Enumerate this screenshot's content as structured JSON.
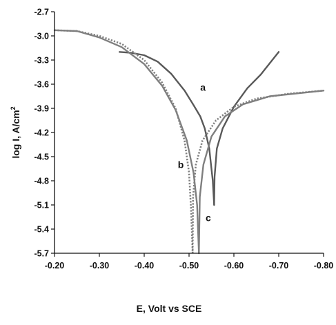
{
  "chart_data": {
    "type": "line",
    "title": "",
    "xlabel": "E, Volt vs SCE",
    "ylabel_main": "log I, A/cm",
    "ylabel_sup": "2",
    "xlim": [
      -0.2,
      -0.8
    ],
    "ylim": [
      -5.7,
      -2.7
    ],
    "x_ticks": [
      -0.2,
      -0.3,
      -0.4,
      -0.5,
      -0.6,
      -0.7,
      -0.8
    ],
    "x_tick_labels": [
      "-0.20",
      "-0.30",
      "-0.40",
      "-0.50",
      "-0.60",
      "-0.70",
      "-0.80"
    ],
    "y_ticks": [
      -2.7,
      -3.0,
      -3.3,
      -3.6,
      -3.9,
      -4.2,
      -4.5,
      -4.8,
      -5.1,
      -5.4,
      -5.7
    ],
    "y_tick_labels": [
      "-2.7",
      "-3.0",
      "-3.3",
      "-3.6",
      "-3.9",
      "-4.2",
      "-4.5",
      "-4.8",
      "-5.1",
      "-5.4",
      "-5.7"
    ],
    "grid": false,
    "series": [
      {
        "name": "a",
        "color": "#595959",
        "dash": "solid",
        "label_at": [
          -0.525,
          -3.68
        ],
        "segments": [
          [
            [
              -0.345,
              -3.2
            ],
            [
              -0.37,
              -3.21
            ],
            [
              -0.4,
              -3.24
            ],
            [
              -0.43,
              -3.32
            ],
            [
              -0.46,
              -3.47
            ],
            [
              -0.49,
              -3.68
            ],
            [
              -0.51,
              -3.86
            ],
            [
              -0.525,
              -4.0
            ],
            [
              -0.535,
              -4.15
            ],
            [
              -0.545,
              -4.4
            ],
            [
              -0.553,
              -4.8
            ],
            [
              -0.556,
              -5.1
            ]
          ],
          [
            [
              -0.556,
              -5.1
            ],
            [
              -0.557,
              -4.75
            ],
            [
              -0.562,
              -4.4
            ],
            [
              -0.575,
              -4.15
            ],
            [
              -0.6,
              -3.88
            ],
            [
              -0.63,
              -3.65
            ],
            [
              -0.66,
              -3.48
            ],
            [
              -0.7,
              -3.2
            ]
          ]
        ]
      },
      {
        "name": "b",
        "color": "#808080",
        "dash": "dotted",
        "label_at": [
          -0.475,
          -4.64
        ],
        "segments": [
          [
            [
              -0.2,
              -2.93
            ],
            [
              -0.25,
              -2.94
            ],
            [
              -0.3,
              -3.0
            ],
            [
              -0.35,
              -3.1
            ],
            [
              -0.4,
              -3.3
            ],
            [
              -0.44,
              -3.58
            ],
            [
              -0.47,
              -3.9
            ],
            [
              -0.49,
              -4.3
            ],
            [
              -0.5,
              -4.7
            ],
            [
              -0.505,
              -5.2
            ],
            [
              -0.508,
              -5.7
            ]
          ],
          [
            [
              -0.508,
              -5.7
            ],
            [
              -0.509,
              -5.0
            ],
            [
              -0.515,
              -4.6
            ],
            [
              -0.53,
              -4.3
            ],
            [
              -0.56,
              -4.05
            ],
            [
              -0.6,
              -3.88
            ],
            [
              -0.65,
              -3.78
            ],
            [
              -0.72,
              -3.72
            ],
            [
              -0.8,
              -3.68
            ]
          ]
        ]
      },
      {
        "name": "c",
        "color": "#7f7f7f",
        "dash": "solid",
        "label_at": [
          -0.537,
          -5.3
        ],
        "segments": [
          [
            [
              -0.2,
              -2.93
            ],
            [
              -0.25,
              -2.94
            ],
            [
              -0.3,
              -3.02
            ],
            [
              -0.35,
              -3.14
            ],
            [
              -0.4,
              -3.35
            ],
            [
              -0.44,
              -3.62
            ],
            [
              -0.47,
              -3.92
            ],
            [
              -0.495,
              -4.3
            ],
            [
              -0.51,
              -4.7
            ],
            [
              -0.518,
              -5.1
            ],
            [
              -0.522,
              -5.7
            ]
          ],
          [
            [
              -0.522,
              -5.7
            ],
            [
              -0.524,
              -5.0
            ],
            [
              -0.532,
              -4.6
            ],
            [
              -0.55,
              -4.25
            ],
            [
              -0.58,
              -4.0
            ],
            [
              -0.62,
              -3.85
            ],
            [
              -0.68,
              -3.75
            ],
            [
              -0.8,
              -3.68
            ]
          ]
        ]
      }
    ]
  }
}
